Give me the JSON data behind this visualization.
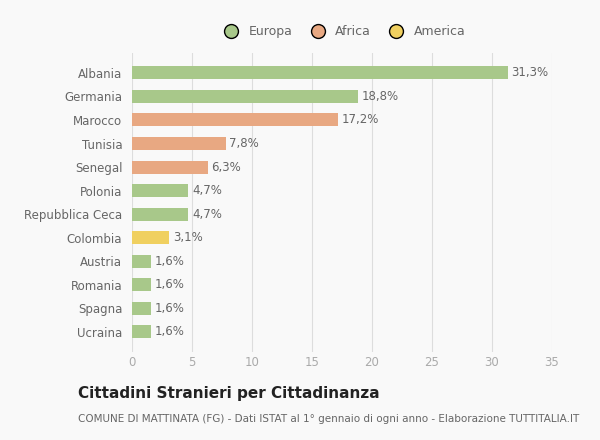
{
  "categories": [
    "Albania",
    "Germania",
    "Marocco",
    "Tunisia",
    "Senegal",
    "Polonia",
    "Repubblica Ceca",
    "Colombia",
    "Austria",
    "Romania",
    "Spagna",
    "Ucraina"
  ],
  "values": [
    31.3,
    18.8,
    17.2,
    7.8,
    6.3,
    4.7,
    4.7,
    3.1,
    1.6,
    1.6,
    1.6,
    1.6
  ],
  "labels": [
    "31,3%",
    "18,8%",
    "17,2%",
    "7,8%",
    "6,3%",
    "4,7%",
    "4,7%",
    "3,1%",
    "1,6%",
    "1,6%",
    "1,6%",
    "1,6%"
  ],
  "colors": [
    "#a8c88a",
    "#a8c88a",
    "#e8a882",
    "#e8a882",
    "#e8a882",
    "#a8c88a",
    "#a8c88a",
    "#f0d060",
    "#a8c88a",
    "#a8c88a",
    "#a8c88a",
    "#a8c88a"
  ],
  "legend_labels": [
    "Europa",
    "Africa",
    "America"
  ],
  "legend_colors": [
    "#a8c88a",
    "#e8a882",
    "#f0d060"
  ],
  "title": "Cittadini Stranieri per Cittadinanza",
  "subtitle": "COMUNE DI MATTINATA (FG) - Dati ISTAT al 1° gennaio di ogni anno - Elaborazione TUTTITALIA.IT",
  "xlim": [
    0,
    35
  ],
  "xticks": [
    0,
    5,
    10,
    15,
    20,
    25,
    30,
    35
  ],
  "background_color": "#f9f9f9",
  "grid_color": "#dddddd",
  "bar_height": 0.55,
  "label_fontsize": 8.5,
  "tick_fontsize": 8.5,
  "title_fontsize": 11,
  "subtitle_fontsize": 7.5,
  "legend_fontsize": 9
}
